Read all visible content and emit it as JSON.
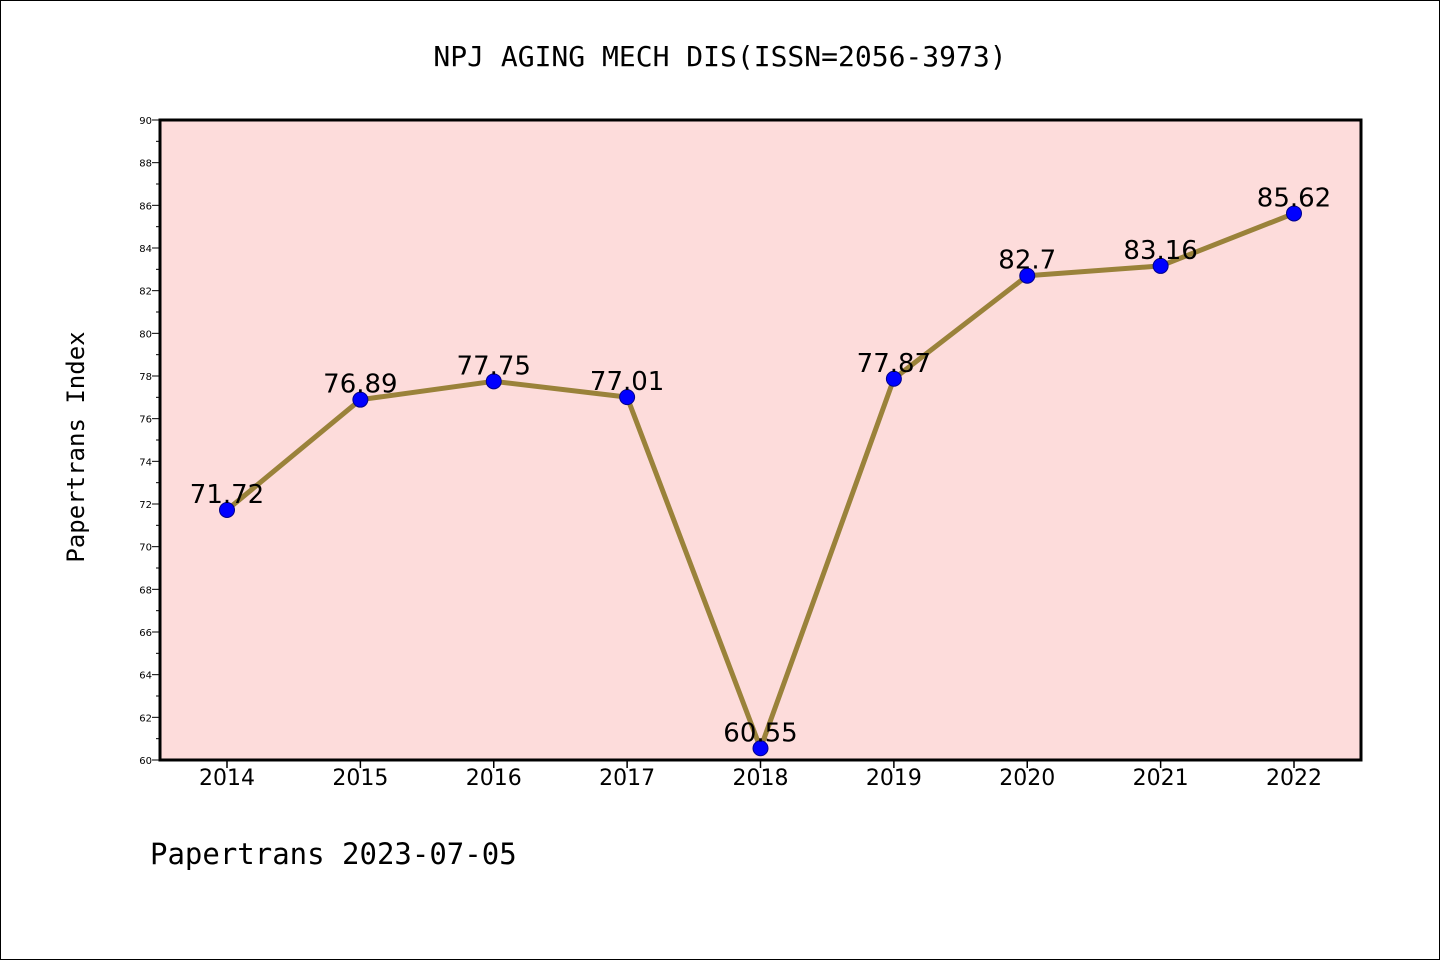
{
  "footer_text": "Papertrans 2023-07-05",
  "chart_data": {
    "type": "line",
    "title": "NPJ AGING MECH DIS(ISSN=2056-3973)",
    "xlabel": "",
    "ylabel": "Papertrans Index",
    "categories": [
      "2014",
      "2015",
      "2016",
      "2017",
      "2018",
      "2019",
      "2020",
      "2021",
      "2022"
    ],
    "series": [
      {
        "values": [
          71.72,
          76.89,
          77.75,
          77.01,
          60.55,
          77.87,
          82.7,
          83.16,
          85.62
        ],
        "value_labels": [
          "71.72",
          "76.89",
          "77.75",
          "77.01",
          "60.55",
          "77.87",
          "82.7",
          "83.16",
          "85.62"
        ]
      }
    ],
    "ylim": [
      60,
      90
    ],
    "yticks": [
      60,
      62,
      64,
      66,
      68,
      70,
      72,
      74,
      76,
      78,
      80,
      82,
      84,
      86,
      88,
      90
    ],
    "grid": false,
    "legend": "none",
    "colors": {
      "plot_background": "#fddcdb",
      "line": "#9a823a",
      "marker": "#0000ff",
      "axes": "#000000"
    }
  }
}
